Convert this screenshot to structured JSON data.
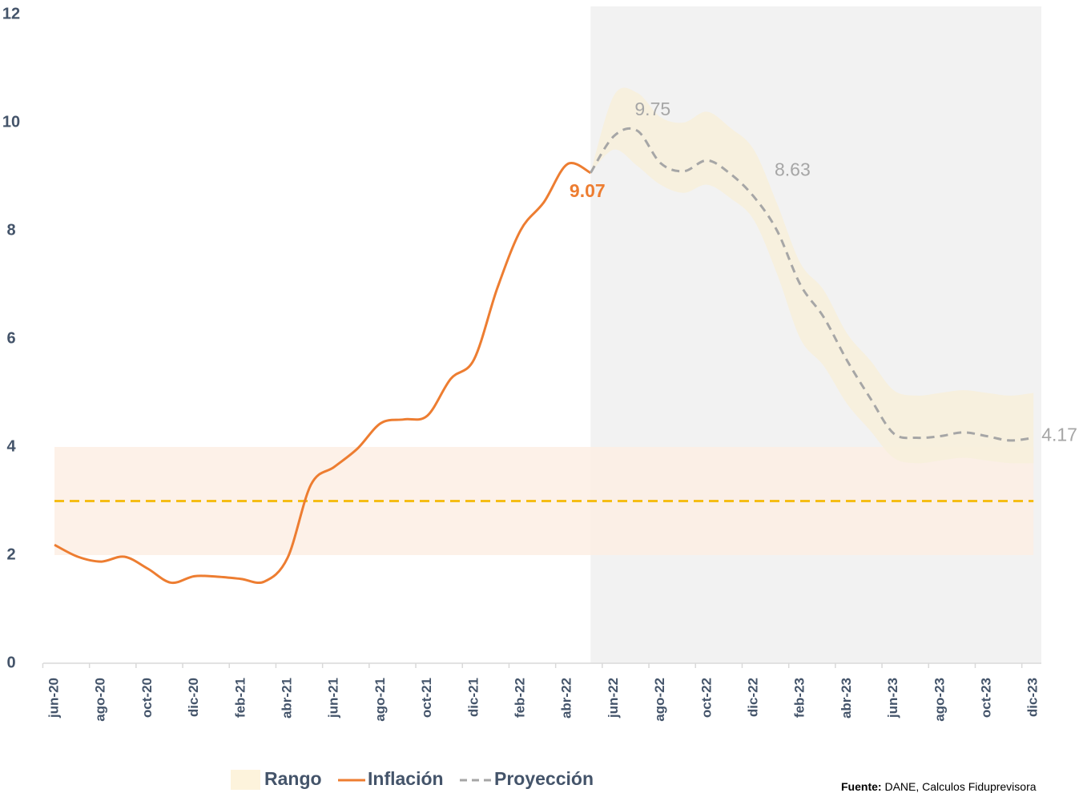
{
  "chart_data": {
    "type": "line",
    "categories": [
      "jun-20",
      null,
      "ago-20",
      null,
      "oct-20",
      null,
      "dic-20",
      null,
      "feb-21",
      null,
      "abr-21",
      null,
      "jun-21",
      null,
      "ago-21",
      null,
      "oct-21",
      null,
      "dic-21",
      null,
      "feb-22",
      null,
      "abr-22",
      null,
      "jun-22",
      null,
      "ago-22",
      null,
      "oct-22",
      null,
      "dic-22",
      null,
      "feb-23",
      null,
      "abr-23",
      null,
      "jun-23",
      null,
      "ago-23",
      null,
      "oct-23",
      null,
      "dic-23"
    ],
    "series": [
      {
        "name": "Inflación",
        "color": "#ed7d31",
        "dashed": false,
        "values": [
          2.19,
          1.97,
          1.88,
          1.97,
          1.75,
          1.49,
          1.61,
          1.6,
          1.56,
          1.51,
          1.95,
          3.3,
          3.63,
          3.97,
          4.44,
          4.51,
          4.58,
          5.26,
          5.62,
          6.94,
          8.01,
          8.53,
          9.23,
          9.07,
          null,
          null,
          null,
          null,
          null,
          null,
          null,
          null,
          null,
          null,
          null,
          null,
          null,
          null,
          null,
          null,
          null,
          null,
          null
        ],
        "value_labels": [
          null,
          null,
          null,
          null,
          null,
          null,
          null,
          null,
          null,
          null,
          null,
          null,
          null,
          null,
          null,
          null,
          null,
          null,
          null,
          null,
          null,
          null,
          null,
          "9.07",
          null,
          null,
          null,
          null,
          null,
          null,
          null,
          null,
          null,
          null,
          null,
          null,
          null,
          null,
          null,
          null,
          null,
          null,
          null
        ]
      },
      {
        "name": "Proyección",
        "color": "#a6a6a6",
        "dashed": true,
        "values": [
          null,
          null,
          null,
          null,
          null,
          null,
          null,
          null,
          null,
          null,
          null,
          null,
          null,
          null,
          null,
          null,
          null,
          null,
          null,
          null,
          null,
          null,
          null,
          9.07,
          9.75,
          9.85,
          9.25,
          9.1,
          9.3,
          9.05,
          8.63,
          8.0,
          7.0,
          6.4,
          5.6,
          4.9,
          4.25,
          4.17,
          4.2,
          4.27,
          4.2,
          4.12,
          4.17
        ],
        "value_labels": [
          null,
          null,
          null,
          null,
          null,
          null,
          null,
          null,
          null,
          null,
          null,
          null,
          null,
          null,
          null,
          null,
          null,
          null,
          null,
          null,
          null,
          null,
          null,
          null,
          "9.75",
          null,
          null,
          null,
          null,
          null,
          "8.63",
          null,
          null,
          null,
          null,
          null,
          null,
          null,
          null,
          null,
          null,
          null,
          "4.17"
        ]
      }
    ],
    "range": {
      "name": "Rango",
      "color": "#f7efdc",
      "lower": [
        null,
        null,
        null,
        null,
        null,
        null,
        null,
        null,
        null,
        null,
        null,
        null,
        null,
        null,
        null,
        null,
        null,
        null,
        null,
        null,
        null,
        null,
        null,
        9.07,
        9.5,
        9.2,
        8.85,
        8.7,
        8.85,
        8.6,
        8.2,
        7.2,
        6.0,
        5.5,
        4.8,
        4.3,
        3.8,
        3.7,
        3.75,
        3.8,
        3.75,
        3.7,
        3.7
      ],
      "upper": [
        null,
        null,
        null,
        null,
        null,
        null,
        null,
        null,
        null,
        null,
        null,
        null,
        null,
        null,
        null,
        null,
        null,
        null,
        null,
        null,
        null,
        null,
        null,
        9.07,
        10.5,
        10.55,
        10.1,
        10.0,
        10.2,
        9.9,
        9.5,
        8.5,
        7.4,
        6.9,
        6.1,
        5.6,
        5.05,
        4.95,
        5.0,
        5.05,
        5.0,
        4.95,
        5.0
      ]
    },
    "target_range": {
      "lower": 2,
      "upper": 4,
      "color": "#fdeee4"
    },
    "target_line": {
      "value": 3,
      "color": "#f5b800"
    },
    "projection_shade": "#f2f2f2",
    "ylim": [
      0,
      12
    ],
    "yticks": [
      0,
      2,
      4,
      6,
      8,
      10,
      12
    ],
    "grid": false,
    "source": {
      "label": "Fuente:",
      "text": " DANE, Calculos Fiduprevisora"
    }
  }
}
